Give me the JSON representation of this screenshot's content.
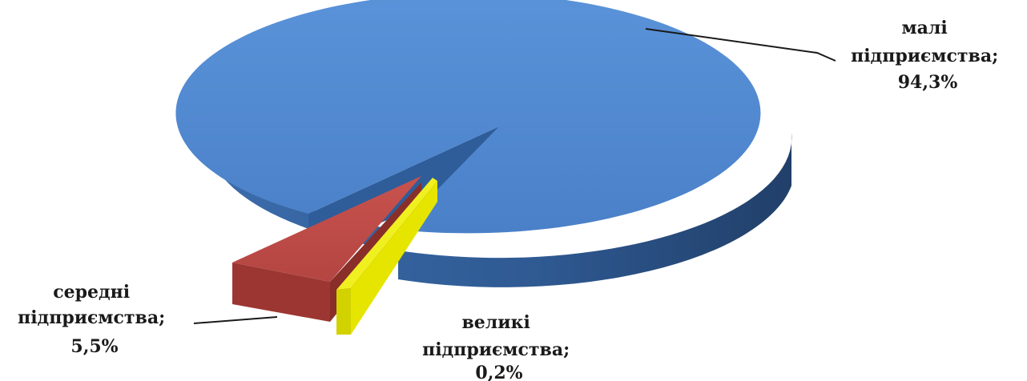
{
  "chart_data": {
    "type": "pie",
    "style": "3d-exploded",
    "title": "",
    "slices": [
      {
        "name": "малі підприємства",
        "value": 94.3,
        "label_lines": [
          "малі",
          "підприємства;",
          "94,3%"
        ],
        "color": "#4f86cf"
      },
      {
        "name": "середні підприємства",
        "value": 5.5,
        "label_lines": [
          "середні",
          "підприємства;",
          "5,5%"
        ],
        "color": "#c0504d"
      },
      {
        "name": "великі підприємства",
        "value": 0.2,
        "label_lines": [
          "великі",
          "підприємства;",
          "0,2%"
        ],
        "color": "#dede00"
      }
    ],
    "legend": "none"
  }
}
